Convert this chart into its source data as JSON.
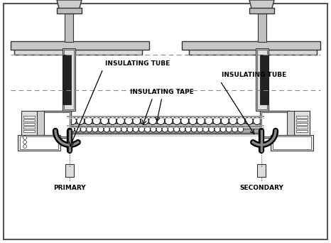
{
  "bg_color": "#f0f0f0",
  "border_color": "#333333",
  "line_color": "#333333",
  "dark_color": "#111111",
  "gray_color": "#888888",
  "light_gray": "#cccccc",
  "medium_gray": "#999999",
  "coil_color": "#dddddd",
  "title_text": "",
  "label_primary": "PRIMARY",
  "label_secondary": "SECONDARY",
  "label_ins_tape": "INSULATING TAPE",
  "label_ins_tube1": "INSULATING TUBE",
  "label_ins_tube2": "INSULATING TUBE"
}
